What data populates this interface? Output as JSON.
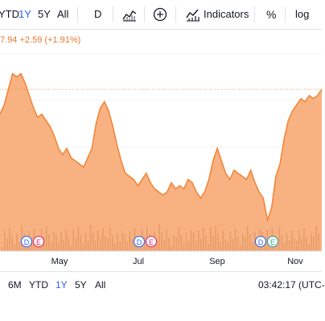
{
  "toolbar": {
    "ranges": [
      "YTD",
      "1Y",
      "5Y",
      "All"
    ],
    "active_range": "1Y",
    "interval": "D",
    "indicators_label": "Indicators",
    "percent_label": "%",
    "log_label": "log"
  },
  "legend": {
    "price_fragment": "7.94",
    "change": "+2.59",
    "change_pct": "(+1.91%)"
  },
  "chart_data": {
    "type": "area",
    "x_tick_labels": [
      "May",
      "Jul",
      "Sep",
      "Nov"
    ],
    "series": [
      {
        "values": [
          128,
          131,
          136,
          141,
          140,
          141,
          138,
          134,
          130,
          127,
          128,
          126,
          124,
          121,
          117,
          115,
          117,
          114,
          113,
          112,
          111,
          114,
          117,
          125,
          130,
          132,
          129,
          124,
          118,
          113,
          109,
          108,
          107,
          105,
          107,
          109,
          106,
          104,
          103,
          102,
          103,
          106,
          104,
          105,
          104,
          107,
          106,
          103,
          101,
          103,
          107,
          113,
          117,
          113,
          109,
          107,
          110,
          109,
          108,
          107,
          110,
          106,
          103,
          101,
          94,
          98,
          108,
          112,
          120,
          126,
          129,
          131,
          133,
          132,
          134,
          133,
          134,
          136
        ]
      }
    ],
    "volume_note": "volume bars shown",
    "events": [
      {
        "near": "Apr",
        "markers": [
          "D",
          "E"
        ]
      },
      {
        "near": "Jul",
        "markers": [
          "D",
          "E"
        ]
      },
      {
        "near": "Oct",
        "markers": [
          "D",
          "E"
        ]
      }
    ],
    "colors": {
      "line": "#f0873a",
      "fill": "#f7a46c",
      "dividend": "#2962ff",
      "earnings_1": "#e91e63",
      "earnings_3": "#26a69a"
    }
  },
  "bottom": {
    "ranges": [
      "6M",
      "YTD",
      "1Y",
      "5Y",
      "All"
    ],
    "active_range": "1Y",
    "clock": "03:42:17 (UTC-"
  }
}
